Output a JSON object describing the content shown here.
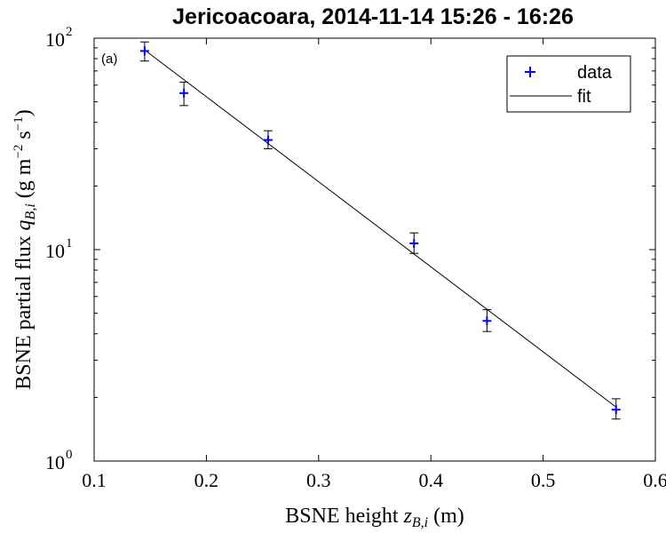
{
  "chart_data": {
    "type": "scatter",
    "title": "Jericoacoara, 2014-11-14 15:26 - 16:26",
    "panel_label": "(a)",
    "xlabel": "BSNE height z_{B,i} (m)",
    "ylabel": "BSNE partial flux q_{B,i} (g m^-2 s^-1)",
    "xlim": [
      0.1,
      0.6
    ],
    "ylim": [
      1,
      100
    ],
    "yscale": "log",
    "xticks": [
      0.1,
      0.2,
      0.3,
      0.4,
      0.5,
      0.6
    ],
    "xtick_labels": [
      "0.1",
      "0.2",
      "0.3",
      "0.4",
      "0.5",
      "0.6"
    ],
    "yticks": [
      1,
      10,
      100
    ],
    "ytick_labels": [
      {
        "base": "10",
        "exp": "0"
      },
      {
        "base": "10",
        "exp": "1"
      },
      {
        "base": "10",
        "exp": "2"
      }
    ],
    "grid": false,
    "legend": {
      "position": "top-right",
      "entries": [
        {
          "label": "data",
          "marker": "plus",
          "color": "#0000ff"
        },
        {
          "label": "fit",
          "marker": "line",
          "color": "#000000"
        }
      ]
    },
    "series": [
      {
        "name": "data",
        "color": "#0000ff",
        "x": [
          0.145,
          0.18,
          0.255,
          0.385,
          0.45,
          0.565
        ],
        "y": [
          87,
          55,
          33,
          10.7,
          4.6,
          1.75
        ],
        "err_low": [
          78,
          48,
          30,
          9.6,
          4.1,
          1.58
        ],
        "err_high": [
          96,
          62,
          36.5,
          12.0,
          5.2,
          1.97
        ]
      },
      {
        "name": "fit",
        "color": "#000000",
        "x": [
          0.145,
          0.565
        ],
        "y": [
          88,
          1.8
        ]
      }
    ]
  }
}
